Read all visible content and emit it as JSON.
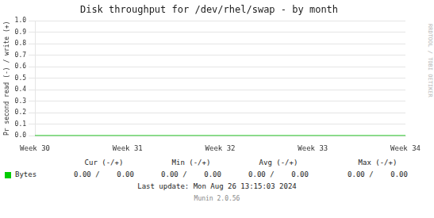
{
  "chart_data": {
    "type": "line",
    "title": "Disk throughput for /dev/rhel/swap - by month",
    "y_label": "Pr second read (-) / write (+)",
    "categories": [
      "Week 30",
      "Week 31",
      "Week 32",
      "Week 33",
      "Week 34"
    ],
    "series": [
      {
        "name": "Bytes",
        "color": "#00cc00",
        "values": [
          0,
          0,
          0,
          0,
          0
        ]
      }
    ],
    "ylim": [
      0,
      1
    ],
    "yticks": [
      {
        "value": 0,
        "label": "0.0"
      },
      0.1,
      0.2,
      0.3,
      0.4,
      0.5,
      0.6,
      0.7,
      0.8,
      0.9,
      {
        "value": 1,
        "label": "1.0"
      }
    ],
    "grid": true,
    "annotations": [
      "RRDTOOL / TOBI OETIKER",
      "Cur (-/+)",
      "Min (-/+)",
      "Avg (-/+)",
      "Max (-/+)",
      "0.00 /    0.00",
      "0.00 /    0.00",
      "0.00 /    0.00",
      "0.00 /    0.00",
      "Last update: Mon Aug 26 13:15:03 2024",
      "Munin 2.0.56"
    ]
  }
}
